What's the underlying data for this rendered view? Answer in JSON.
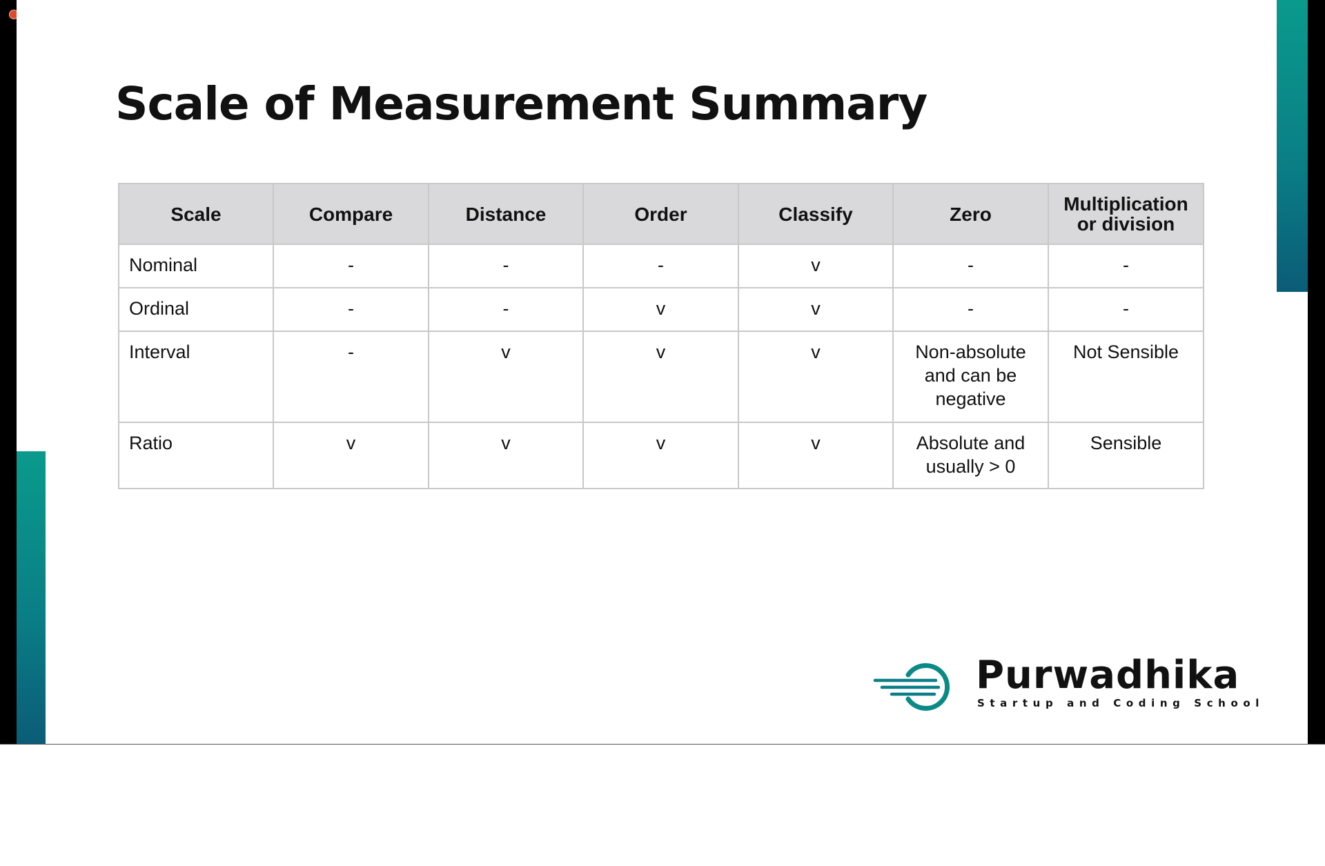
{
  "slide": {
    "title": "Scale of Measurement Summary"
  },
  "table": {
    "headers": [
      "Scale",
      "Compare",
      "Distance",
      "Order",
      "Classify",
      "Zero",
      "Multiplication or division"
    ],
    "rows": [
      [
        "Nominal",
        "-",
        "-",
        "-",
        "v",
        "-",
        "-"
      ],
      [
        "Ordinal",
        "-",
        "-",
        "v",
        "v",
        "-",
        "-"
      ],
      [
        "Interval",
        "-",
        "v",
        "v",
        "v",
        "Non-absolute and can be negative",
        "Not Sensible"
      ],
      [
        "Ratio",
        "v",
        "v",
        "v",
        "v",
        "Absolute and usually > 0",
        "Sensible"
      ]
    ]
  },
  "logo": {
    "name": "Purwadhika",
    "tagline": "Startup and Coding School"
  },
  "colors": {
    "accent_teal": "#0a9a8c",
    "accent_dark_teal": "#0b5c77",
    "header_fill": "#d9d9db",
    "recording_dot": "#e04a2a"
  },
  "icons": {
    "recording": "recording-dot-icon",
    "logo_mark": "purwadhika-logo-icon"
  }
}
